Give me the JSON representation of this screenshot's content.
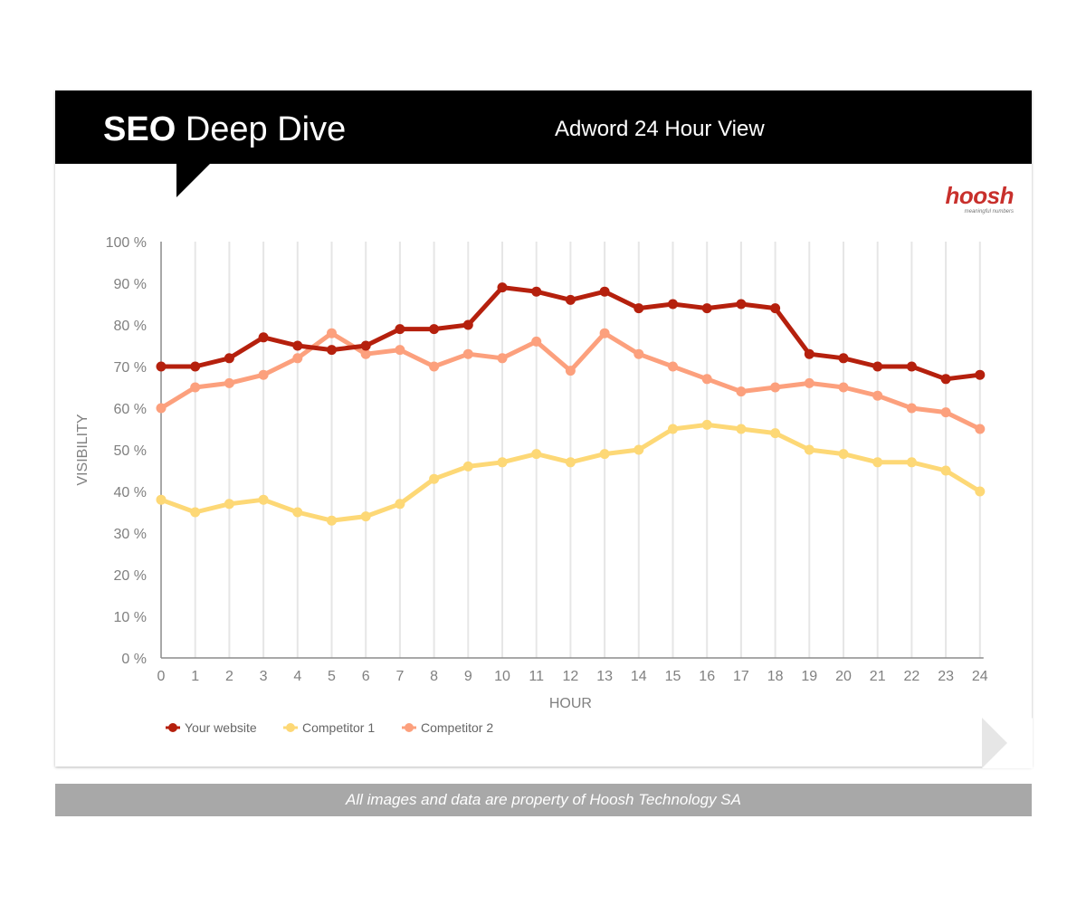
{
  "header": {
    "title_bold": "SEO",
    "title_rest": "Deep Dive",
    "subtitle": "Adword 24 Hour View"
  },
  "logo": {
    "wordmark": "hoosh",
    "tagline": "meaningful numbers"
  },
  "footer": {
    "text": "All images and data are property of Hoosh Technology SA"
  },
  "chart_data": {
    "type": "line",
    "title": "Adword 24 Hour View",
    "xlabel": "HOUR",
    "ylabel": "VISIBILITY",
    "x": [
      0,
      1,
      2,
      3,
      4,
      5,
      6,
      7,
      8,
      9,
      10,
      11,
      12,
      13,
      14,
      15,
      16,
      17,
      18,
      19,
      20,
      21,
      22,
      23,
      24
    ],
    "ylim": [
      0,
      100
    ],
    "yticks": [
      0,
      10,
      20,
      30,
      40,
      50,
      60,
      70,
      80,
      90,
      100
    ],
    "ytick_labels": [
      "0 %",
      "10 %",
      "20 %",
      "30 %",
      "40 %",
      "50 %",
      "60 %",
      "70 %",
      "80 %",
      "90 %",
      "100 %"
    ],
    "grid": "vertical",
    "legend_position": "bottom-left",
    "series": [
      {
        "name": "Your website",
        "color": "#b5200d",
        "values": [
          70,
          70,
          72,
          77,
          75,
          74,
          75,
          79,
          79,
          80,
          89,
          88,
          86,
          88,
          84,
          85,
          84,
          85,
          84,
          73,
          72,
          70,
          70,
          67,
          68
        ]
      },
      {
        "name": "Competitor 1",
        "color": "#fdd876",
        "values": [
          38,
          35,
          37,
          38,
          35,
          33,
          34,
          37,
          43,
          46,
          47,
          49,
          47,
          49,
          50,
          55,
          56,
          55,
          54,
          50,
          49,
          47,
          47,
          45,
          40
        ]
      },
      {
        "name": "Competitor 2",
        "color": "#fca07d",
        "values": [
          60,
          65,
          66,
          68,
          72,
          78,
          73,
          74,
          70,
          73,
          72,
          76,
          69,
          78,
          73,
          70,
          67,
          64,
          65,
          66,
          65,
          63,
          60,
          59,
          55
        ]
      }
    ]
  }
}
